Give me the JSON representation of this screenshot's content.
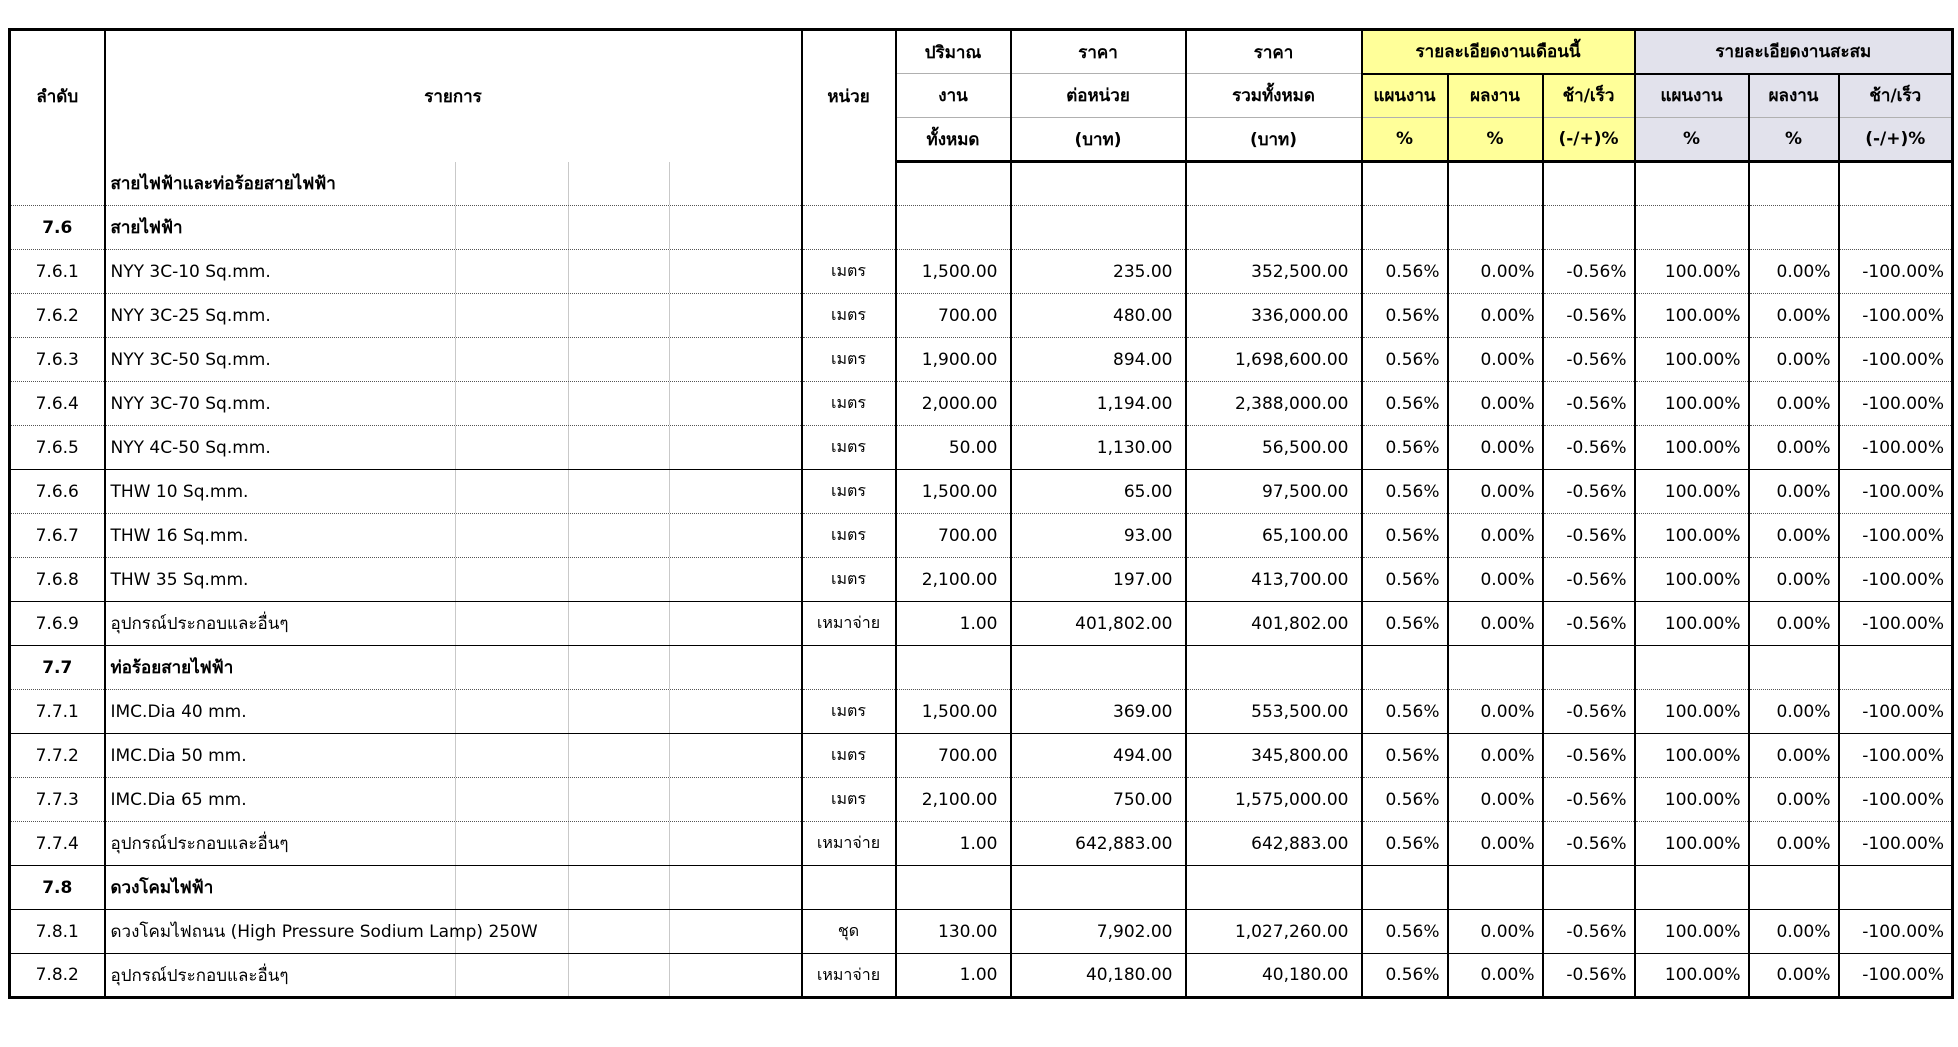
{
  "header": {
    "col_no": "ลำดับ",
    "col_item": "รายการ",
    "col_unit": "หน่วย",
    "col_qty_lines": [
      "ปริมาณ",
      "งาน",
      "ทั้งหมด"
    ],
    "col_unit_price_lines": [
      "ราคา",
      "ต่อหน่วย",
      "(บาท)"
    ],
    "col_total_price_lines": [
      "ราคา",
      "รวมทั้งหมด",
      "(บาท)"
    ],
    "month_group": {
      "title": "รายละเอียดงานเดือนนี้",
      "cols": [
        {
          "l1": "แผนงาน",
          "l2": "%"
        },
        {
          "l1": "ผลงาน",
          "l2": "%"
        },
        {
          "l1": "ช้า/เร็ว",
          "l2": "(-/+)%"
        }
      ]
    },
    "cumulative_group": {
      "title": "รายละเอียดงานสะสม",
      "cols": [
        {
          "l1": "แผนงาน",
          "l2": "%"
        },
        {
          "l1": "ผลงาน",
          "l2": "%"
        },
        {
          "l1": "ช้า/เร็ว",
          "l2": "(-/+)%"
        }
      ]
    }
  },
  "colors": {
    "month_header_bg": "#FFFF99",
    "cumulative_header_bg": "#E2E2EC",
    "border": "#000000"
  },
  "rows": [
    {
      "no": "",
      "item": "สายไฟฟ้าและท่อร้อยสายไฟฟ้า",
      "unit": "",
      "qty": "",
      "unit_price": "",
      "total_price": "",
      "month_plan": "",
      "month_actual": "",
      "month_diff": "",
      "cum_plan": "",
      "cum_actual": "",
      "cum_diff": "",
      "section": true,
      "sep": "dotted"
    },
    {
      "no": "7.6",
      "item": "สายไฟฟ้า",
      "unit": "",
      "qty": "",
      "unit_price": "",
      "total_price": "",
      "month_plan": "",
      "month_actual": "",
      "month_diff": "",
      "cum_plan": "",
      "cum_actual": "",
      "cum_diff": "",
      "section": true,
      "sep": "dotted"
    },
    {
      "no": "7.6.1",
      "item": "NYY 3C-10 Sq.mm.",
      "unit": "เมตร",
      "qty": "1,500.00",
      "unit_price": "235.00",
      "total_price": "352,500.00",
      "month_plan": "0.56%",
      "month_actual": "0.00%",
      "month_diff": "-0.56%",
      "cum_plan": "100.00%",
      "cum_actual": "0.00%",
      "cum_diff": "-100.00%",
      "section": false,
      "sep": "dotted"
    },
    {
      "no": "7.6.2",
      "item": "NYY 3C-25 Sq.mm.",
      "unit": "เมตร",
      "qty": "700.00",
      "unit_price": "480.00",
      "total_price": "336,000.00",
      "month_plan": "0.56%",
      "month_actual": "0.00%",
      "month_diff": "-0.56%",
      "cum_plan": "100.00%",
      "cum_actual": "0.00%",
      "cum_diff": "-100.00%",
      "section": false,
      "sep": "dotted"
    },
    {
      "no": "7.6.3",
      "item": "NYY 3C-50 Sq.mm.",
      "unit": "เมตร",
      "qty": "1,900.00",
      "unit_price": "894.00",
      "total_price": "1,698,600.00",
      "month_plan": "0.56%",
      "month_actual": "0.00%",
      "month_diff": "-0.56%",
      "cum_plan": "100.00%",
      "cum_actual": "0.00%",
      "cum_diff": "-100.00%",
      "section": false,
      "sep": "dotted"
    },
    {
      "no": "7.6.4",
      "item": "NYY 3C-70 Sq.mm.",
      "unit": "เมตร",
      "qty": "2,000.00",
      "unit_price": "1,194.00",
      "total_price": "2,388,000.00",
      "month_plan": "0.56%",
      "month_actual": "0.00%",
      "month_diff": "-0.56%",
      "cum_plan": "100.00%",
      "cum_actual": "0.00%",
      "cum_diff": "-100.00%",
      "section": false,
      "sep": "dotted"
    },
    {
      "no": "7.6.5",
      "item": "NYY 4C-50 Sq.mm.",
      "unit": "เมตร",
      "qty": "50.00",
      "unit_price": "1,130.00",
      "total_price": "56,500.00",
      "month_plan": "0.56%",
      "month_actual": "0.00%",
      "month_diff": "-0.56%",
      "cum_plan": "100.00%",
      "cum_actual": "0.00%",
      "cum_diff": "-100.00%",
      "section": false,
      "sep": "solid"
    },
    {
      "no": "7.6.6",
      "item": "THW 10 Sq.mm.",
      "unit": "เมตร",
      "qty": "1,500.00",
      "unit_price": "65.00",
      "total_price": "97,500.00",
      "month_plan": "0.56%",
      "month_actual": "0.00%",
      "month_diff": "-0.56%",
      "cum_plan": "100.00%",
      "cum_actual": "0.00%",
      "cum_diff": "-100.00%",
      "section": false,
      "sep": "dotted"
    },
    {
      "no": "7.6.7",
      "item": "THW 16 Sq.mm.",
      "unit": "เมตร",
      "qty": "700.00",
      "unit_price": "93.00",
      "total_price": "65,100.00",
      "month_plan": "0.56%",
      "month_actual": "0.00%",
      "month_diff": "-0.56%",
      "cum_plan": "100.00%",
      "cum_actual": "0.00%",
      "cum_diff": "-100.00%",
      "section": false,
      "sep": "dotted"
    },
    {
      "no": "7.6.8",
      "item": "THW 35 Sq.mm.",
      "unit": "เมตร",
      "qty": "2,100.00",
      "unit_price": "197.00",
      "total_price": "413,700.00",
      "month_plan": "0.56%",
      "month_actual": "0.00%",
      "month_diff": "-0.56%",
      "cum_plan": "100.00%",
      "cum_actual": "0.00%",
      "cum_diff": "-100.00%",
      "section": false,
      "sep": "solid"
    },
    {
      "no": "7.6.9",
      "item": "อุปกรณ์ประกอบและอื่นๆ",
      "unit": "เหมาจ่าย",
      "qty": "1.00",
      "unit_price": "401,802.00",
      "total_price": "401,802.00",
      "month_plan": "0.56%",
      "month_actual": "0.00%",
      "month_diff": "-0.56%",
      "cum_plan": "100.00%",
      "cum_actual": "0.00%",
      "cum_diff": "-100.00%",
      "section": false,
      "sep": "solid"
    },
    {
      "no": "7.7",
      "item": "ท่อร้อยสายไฟฟ้า",
      "unit": "",
      "qty": "",
      "unit_price": "",
      "total_price": "",
      "month_plan": "",
      "month_actual": "",
      "month_diff": "",
      "cum_plan": "",
      "cum_actual": "",
      "cum_diff": "",
      "section": true,
      "sep": "dotted"
    },
    {
      "no": "7.7.1",
      "item": "IMC.Dia 40 mm.",
      "unit": "เมตร",
      "qty": "1,500.00",
      "unit_price": "369.00",
      "total_price": "553,500.00",
      "month_plan": "0.56%",
      "month_actual": "0.00%",
      "month_diff": "-0.56%",
      "cum_plan": "100.00%",
      "cum_actual": "0.00%",
      "cum_diff": "-100.00%",
      "section": false,
      "sep": "solid"
    },
    {
      "no": "7.7.2",
      "item": "IMC.Dia 50 mm.",
      "unit": "เมตร",
      "qty": "700.00",
      "unit_price": "494.00",
      "total_price": "345,800.00",
      "month_plan": "0.56%",
      "month_actual": "0.00%",
      "month_diff": "-0.56%",
      "cum_plan": "100.00%",
      "cum_actual": "0.00%",
      "cum_diff": "-100.00%",
      "section": false,
      "sep": "dotted"
    },
    {
      "no": "7.7.3",
      "item": "IMC.Dia 65 mm.",
      "unit": "เมตร",
      "qty": "2,100.00",
      "unit_price": "750.00",
      "total_price": "1,575,000.00",
      "month_plan": "0.56%",
      "month_actual": "0.00%",
      "month_diff": "-0.56%",
      "cum_plan": "100.00%",
      "cum_actual": "0.00%",
      "cum_diff": "-100.00%",
      "section": false,
      "sep": "dotted"
    },
    {
      "no": "7.7.4",
      "item": "อุปกรณ์ประกอบและอื่นๆ",
      "unit": "เหมาจ่าย",
      "qty": "1.00",
      "unit_price": "642,883.00",
      "total_price": "642,883.00",
      "month_plan": "0.56%",
      "month_actual": "0.00%",
      "month_diff": "-0.56%",
      "cum_plan": "100.00%",
      "cum_actual": "0.00%",
      "cum_diff": "-100.00%",
      "section": false,
      "sep": "solid"
    },
    {
      "no": "7.8",
      "item": "ดวงโคมไฟฟ้า",
      "unit": "",
      "qty": "",
      "unit_price": "",
      "total_price": "",
      "month_plan": "",
      "month_actual": "",
      "month_diff": "",
      "cum_plan": "",
      "cum_actual": "",
      "cum_diff": "",
      "section": true,
      "sep": "solid"
    },
    {
      "no": "7.8.1",
      "item": "ดวงโคมไฟถนน (High Pressure Sodium Lamp) 250W",
      "unit": "ชุด",
      "qty": "130.00",
      "unit_price": "7,902.00",
      "total_price": "1,027,260.00",
      "month_plan": "0.56%",
      "month_actual": "0.00%",
      "month_diff": "-0.56%",
      "cum_plan": "100.00%",
      "cum_actual": "0.00%",
      "cum_diff": "-100.00%",
      "section": false,
      "sep": "solid"
    },
    {
      "no": "7.8.2",
      "item": "อุปกรณ์ประกอบและอื่นๆ",
      "unit": "เหมาจ่าย",
      "qty": "1.00",
      "unit_price": "40,180.00",
      "total_price": "40,180.00",
      "month_plan": "0.56%",
      "month_actual": "0.00%",
      "month_diff": "-0.56%",
      "cum_plan": "100.00%",
      "cum_actual": "0.00%",
      "cum_diff": "-100.00%",
      "section": false,
      "sep": "dotted"
    }
  ]
}
